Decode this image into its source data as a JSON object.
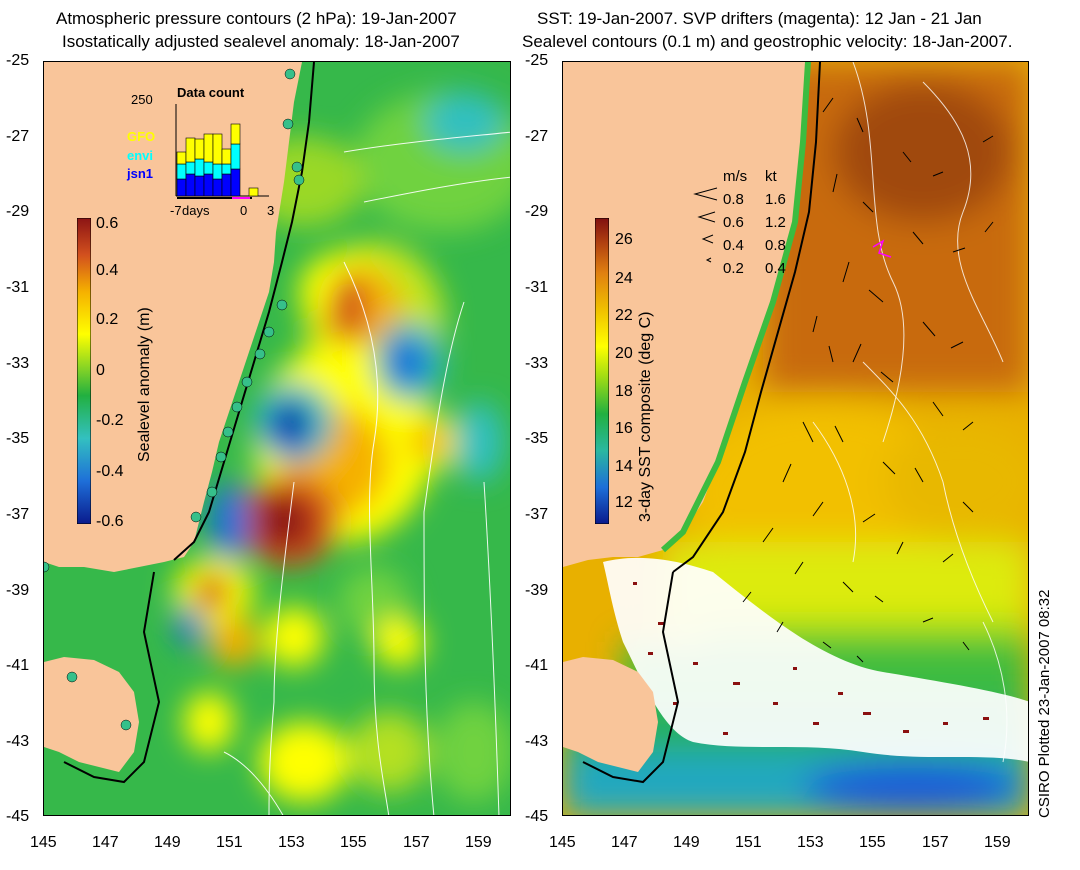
{
  "left_panel": {
    "title_line1": "Atmospheric pressure contours (2 hPa): 19-Jan-2007",
    "title_line2": "Isostatically adjusted sealevel anomaly: 18-Jan-2007",
    "colorbar_label": "Sealevel anomaly (m)",
    "colorbar_ticks": [
      "0.6",
      "0.4",
      "0.2",
      "0",
      "-0.2",
      "-0.4",
      "-0.6"
    ],
    "inset": {
      "title": "Data count",
      "ymax_label": "250",
      "legend": [
        "GFO",
        "envi",
        "jsn1"
      ],
      "legend_colors": [
        "#ffff00",
        "#00ffff",
        "#0000ff"
      ],
      "xlabel": "days",
      "xticks": [
        "-7",
        "0",
        "3"
      ]
    }
  },
  "right_panel": {
    "title_line1": "SST: 19-Jan-2007. SVP drifters (magenta): 12 Jan - 21 Jan",
    "title_line2": "Sealevel contours (0.1 m) and geostrophic velocity: 18-Jan-2007.",
    "colorbar_label": "3-day SST composite (deg C)",
    "colorbar_ticks": [
      "26",
      "24",
      "22",
      "20",
      "18",
      "16",
      "14",
      "12"
    ],
    "velocity_legend": {
      "header_ms": "m/s",
      "header_kt": "kt",
      "rows": [
        {
          "ms": "0.8",
          "kt": "1.6"
        },
        {
          "ms": "0.6",
          "kt": "1.2"
        },
        {
          "ms": "0.4",
          "kt": "0.8"
        },
        {
          "ms": "0.2",
          "kt": "0.4"
        }
      ]
    }
  },
  "axes": {
    "lat_ticks": [
      "-25",
      "-27",
      "-29",
      "-31",
      "-33",
      "-35",
      "-37",
      "-39",
      "-41",
      "-43",
      "-45"
    ],
    "lon_ticks": [
      "145",
      "147",
      "149",
      "151",
      "153",
      "155",
      "157",
      "159"
    ]
  },
  "credit": "CSIRO Plotted 23-Jan-2007 08:32",
  "colors": {
    "land": "#f9c59a",
    "anomaly_scale": [
      "#0a1a8c",
      "#1e6fd8",
      "#33c0c0",
      "#22b040",
      "#8cd21e",
      "#ffff00",
      "#f5b000",
      "#d2501e",
      "#8c1414"
    ],
    "sst_scale": [
      "#0a1a8c",
      "#1e6fd8",
      "#2ab8a0",
      "#22b040",
      "#a0dc14",
      "#ffff00",
      "#f0c000",
      "#e08010",
      "#b04010",
      "#801010"
    ],
    "drifters": "#ff00ff"
  }
}
